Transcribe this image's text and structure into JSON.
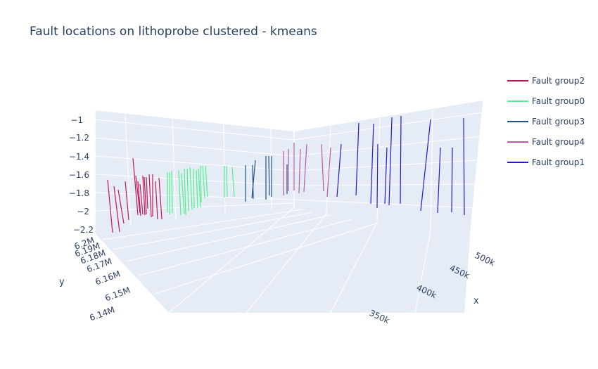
{
  "chart_data": {
    "type": "line3d",
    "title": "Fault locations on lithoprobe clustered - kmeans",
    "axes": {
      "x": {
        "title": "x",
        "ticks": [
          "350k",
          "400k",
          "450k",
          "500k"
        ]
      },
      "y": {
        "title": "y",
        "ticks": [
          "6.14M",
          "6.15M",
          "6.16M",
          "6.17M",
          "6.18M",
          "6.19M",
          "6.2M"
        ]
      },
      "z": {
        "title": "",
        "ticks": [
          "−1",
          "−1.2",
          "−1.4",
          "−1.6",
          "−1.8",
          "−2",
          "−2.2"
        ]
      }
    },
    "legend_position": "top-right",
    "series": [
      {
        "name": "Fault group2",
        "color": "#c2185b"
      },
      {
        "name": "Fault group0",
        "color": "#50f08c"
      },
      {
        "name": "Fault group3",
        "color": "#1f4f85"
      },
      {
        "name": "Fault group4",
        "color": "#b85aa8"
      },
      {
        "name": "Fault group1",
        "color": "#2a17c9"
      }
    ]
  }
}
